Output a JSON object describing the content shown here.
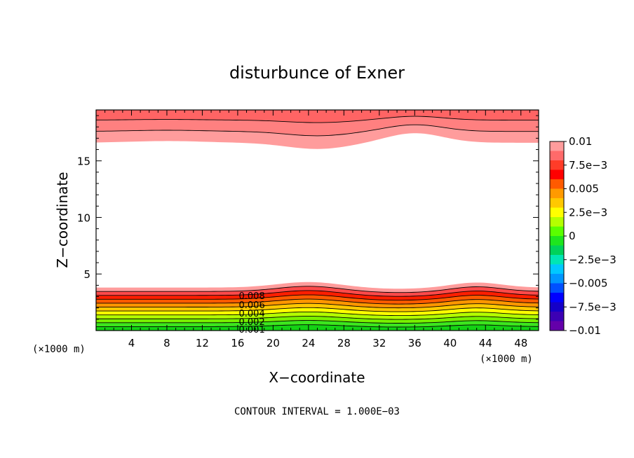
{
  "chart_data": {
    "type": "contour",
    "title": "disturbunce of Exner",
    "xlabel": "X−coordinate",
    "ylabel": "Z−coordinate",
    "x_unit_note_left": "(×1000 m)",
    "x_unit_note_right": "(×1000 m)",
    "xlim": [
      0,
      50
    ],
    "ylim": [
      0,
      19.5
    ],
    "x_ticks": [
      4,
      8,
      12,
      16,
      20,
      24,
      28,
      32,
      36,
      40,
      44,
      48
    ],
    "x_tick_labels": [
      "4",
      "8",
      "12",
      "16",
      "20",
      "24",
      "28",
      "32",
      "36",
      "40",
      "44",
      "48"
    ],
    "y_ticks": [
      5,
      10,
      15
    ],
    "y_tick_labels": [
      "5",
      "10",
      "15"
    ],
    "contour_interval_text": "CONTOUR INTERVAL = 1.000E−03",
    "contour_labels": [
      "0.008",
      "0.006",
      "0.004",
      "0.002",
      "0.001"
    ],
    "colorbar": {
      "labels": [
        "0.01",
        "7.5e−3",
        "0.005",
        "2.5e−3",
        "0",
        "−2.5e−3",
        "−0.005",
        "−7.5e−3",
        "−0.01"
      ],
      "colors": [
        "#ff9c9c",
        "#ff6a6a",
        "#ff3c28",
        "#ff0000",
        "#ff5a00",
        "#ff9a00",
        "#ffc800",
        "#ffff00",
        "#b4ff00",
        "#5aff00",
        "#1ee61e",
        "#00d25a",
        "#00e6b4",
        "#00c8ff",
        "#0096ff",
        "#0050ff",
        "#0000ff",
        "#1400c8",
        "#3c00b4",
        "#6400aa"
      ]
    },
    "fields": {
      "bottom_layer_levels": [
        0.0,
        0.001,
        0.002,
        0.003,
        0.004,
        0.005,
        0.006,
        0.007,
        0.008,
        0.009
      ],
      "bottom_layer_top_km": 3.8,
      "top_layer_bottom_km": 16.2
    }
  }
}
